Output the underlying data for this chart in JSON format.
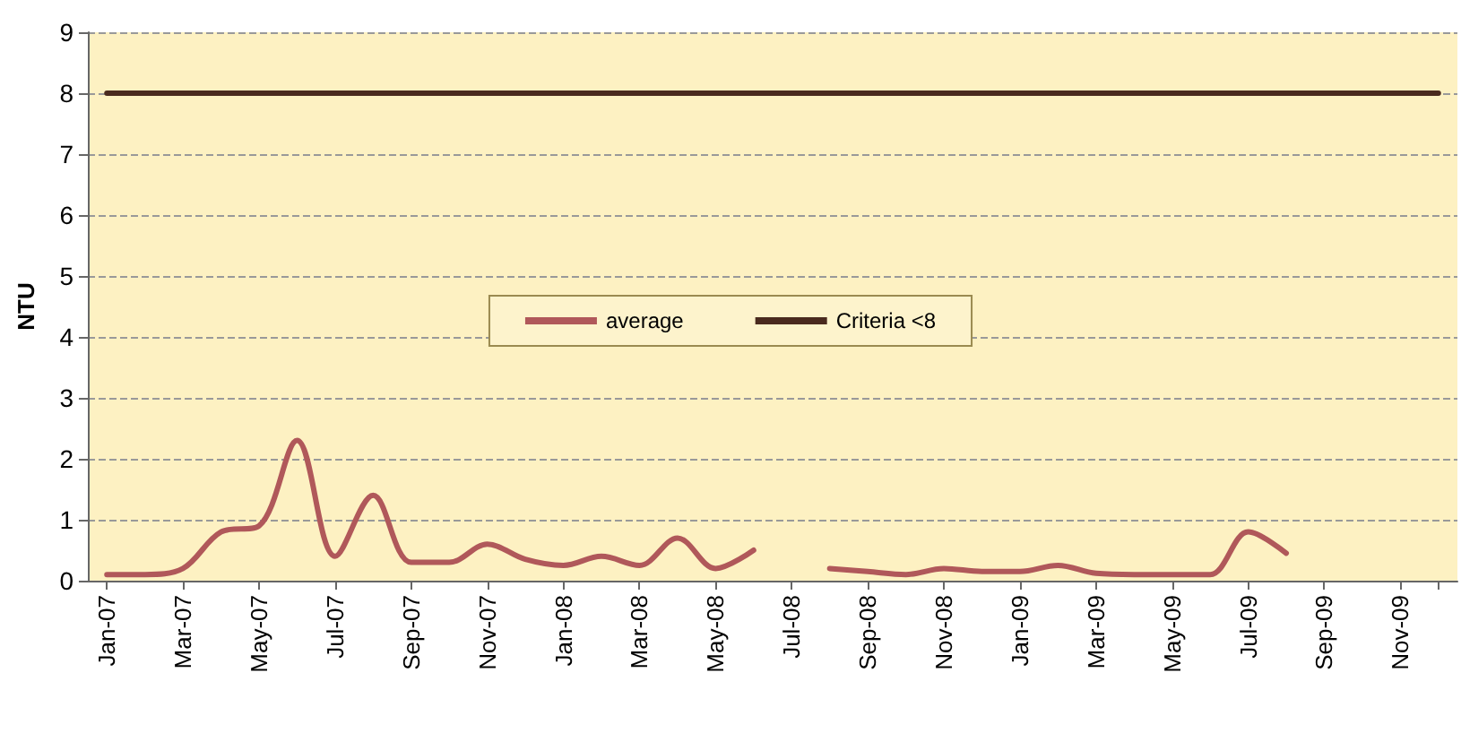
{
  "chart_data": {
    "type": "line",
    "ylabel": "NTU",
    "categories": [
      "Jan-07",
      null,
      "Mar-07",
      null,
      "May-07",
      null,
      "Jul-07",
      null,
      "Sep-07",
      null,
      "Nov-07",
      null,
      "Jan-08",
      null,
      "Mar-08",
      null,
      "May-08",
      null,
      "Jul-08",
      null,
      "Sep-08",
      null,
      "Nov-08",
      null,
      "Jan-09",
      null,
      "Mar-09",
      null,
      "May-09",
      null,
      "Jul-09",
      null,
      "Sep-09",
      null,
      "Nov-09",
      null
    ],
    "series": [
      {
        "name": "average",
        "color": "#b0585a",
        "values": [
          0.1,
          0.1,
          0.2,
          0.8,
          0.9,
          2.3,
          0.4,
          1.4,
          0.3,
          0.3,
          0.6,
          0.35,
          0.25,
          0.4,
          0.25,
          0.7,
          0.2,
          0.5,
          null,
          0.2,
          0.15,
          0.1,
          0.2,
          0.15,
          0.15,
          0.25,
          0.12,
          0.1,
          0.1,
          0.1,
          0.8,
          0.45,
          null,
          null,
          null,
          null
        ]
      },
      {
        "name": "Criteria <8",
        "color": "#4a2a1e",
        "values": [
          8,
          8,
          8,
          8,
          8,
          8,
          8,
          8,
          8,
          8,
          8,
          8,
          8,
          8,
          8,
          8,
          8,
          8,
          8,
          8,
          8,
          8,
          8,
          8,
          8,
          8,
          8,
          8,
          8,
          8,
          8,
          8,
          8,
          8,
          8,
          8
        ]
      }
    ],
    "ylim": [
      0,
      9
    ],
    "yticks": [
      0,
      1,
      2,
      3,
      4,
      5,
      6,
      7,
      8,
      9
    ],
    "grid": "y",
    "legend": "center",
    "marker": "none",
    "line_style": "solid"
  }
}
